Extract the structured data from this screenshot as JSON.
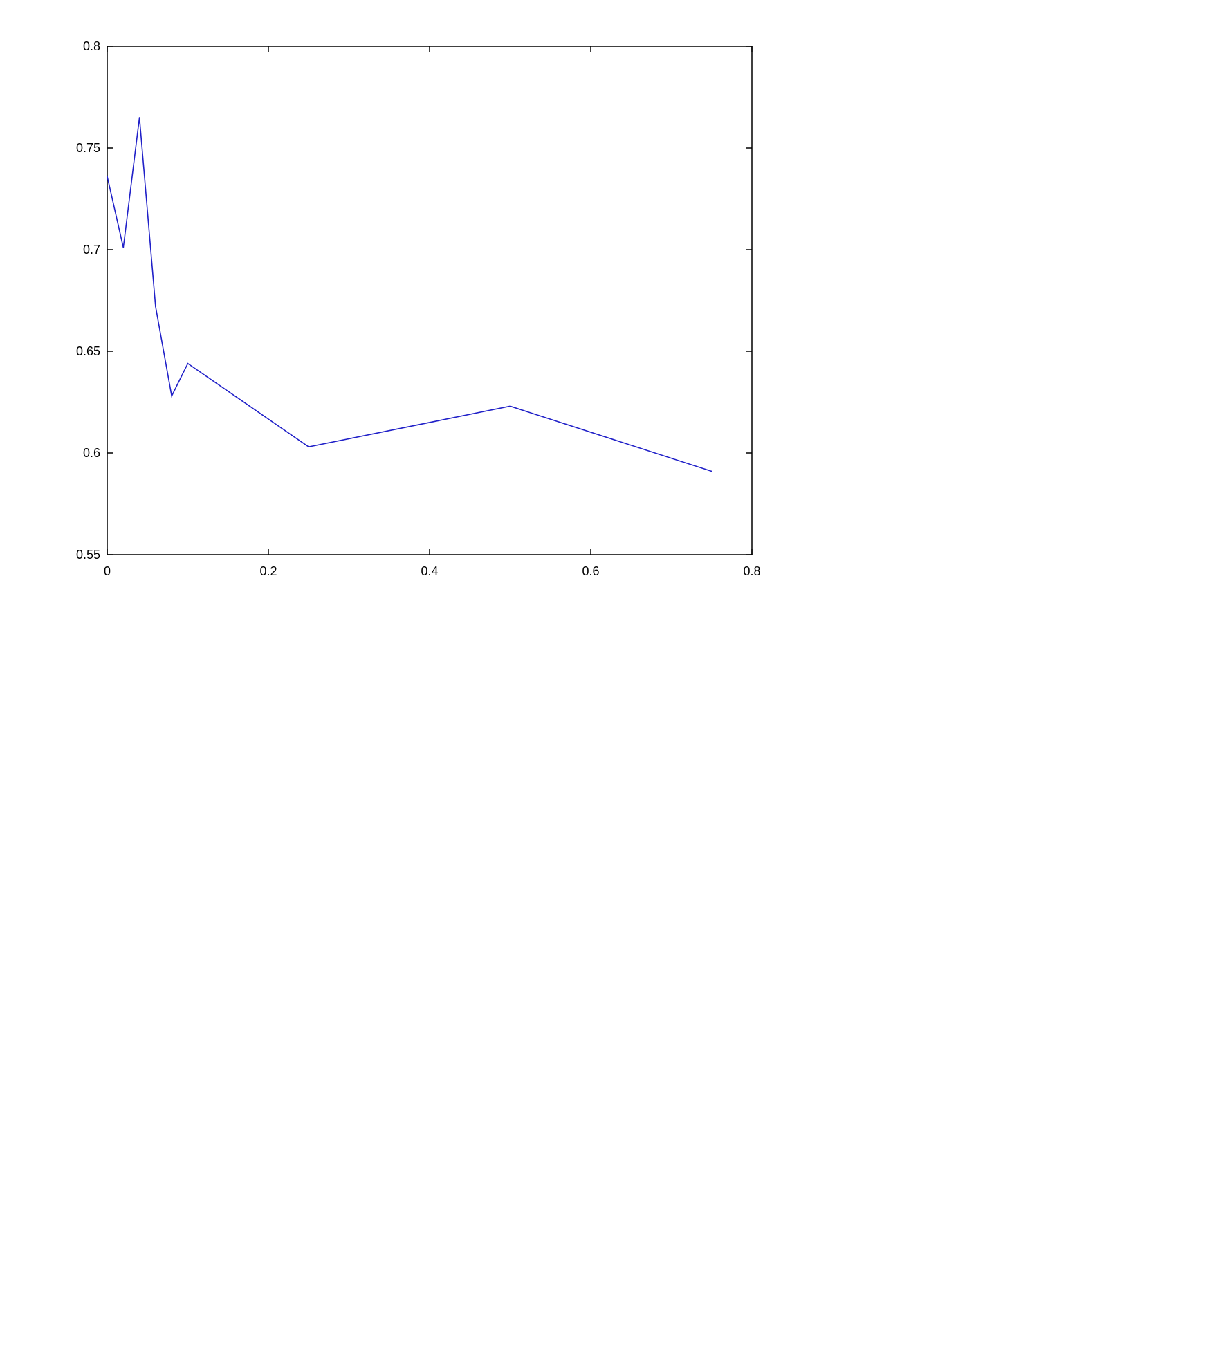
{
  "chart_data": {
    "type": "line",
    "title": "",
    "xlabel": "",
    "ylabel": "",
    "xlim": [
      0,
      0.8
    ],
    "ylim": [
      0.55,
      0.8
    ],
    "xticks": [
      "0",
      "0.2",
      "0.4",
      "0.6",
      "0.8"
    ],
    "yticks": [
      "0.55",
      "0.6",
      "0.65",
      "0.7",
      "0.75",
      "0.8"
    ],
    "grid": false,
    "series": [
      {
        "color": "#2020c8",
        "x": [
          0,
          0.02,
          0.04,
          0.06,
          0.08,
          0.1,
          0.25,
          0.5,
          0.75
        ],
        "y": [
          0.736,
          0.701,
          0.765,
          0.672,
          0.628,
          0.644,
          0.603,
          0.623,
          0.591
        ]
      }
    ]
  }
}
